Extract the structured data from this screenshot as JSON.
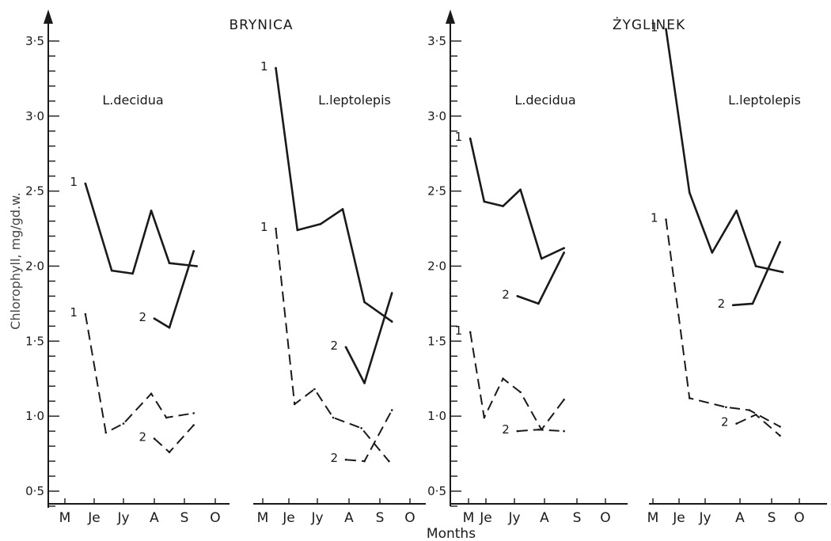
{
  "chart_data": {
    "type": "line",
    "ylabel": "Chlorophyll, mg/gd.w.",
    "xlabel": "Months",
    "ylim": [
      0.4,
      3.7
    ],
    "y_ticks": [
      "0·5",
      "1·0",
      "1·5",
      "2·0",
      "2·5",
      "3·0",
      "3·5"
    ],
    "grid": false,
    "sites": [
      {
        "title": "BRYNICA",
        "panels": [
          {
            "title": "L.decidua",
            "months": [
              "M",
              "Je",
              "Jy",
              "A",
              "S",
              "O"
            ],
            "series": [
              {
                "name": "1",
                "style": "solid",
                "x": [
                  1.7,
                  2.6,
                  3.3,
                  3.9,
                  4.5,
                  5.4
                ],
                "y": [
                  2.55,
                  1.97,
                  1.95,
                  2.37,
                  2.02,
                  2.0
                ]
              },
              {
                "name": "2",
                "style": "solid",
                "x": [
                  4.0,
                  4.5,
                  5.3
                ],
                "y": [
                  1.65,
                  1.59,
                  2.1
                ]
              },
              {
                "name": "1",
                "style": "dashed",
                "x": [
                  1.7,
                  2.4,
                  3.0,
                  3.9,
                  4.4,
                  5.3
                ],
                "y": [
                  1.68,
                  0.89,
                  0.95,
                  1.15,
                  0.99,
                  1.02
                ]
              },
              {
                "name": "2",
                "style": "dashed",
                "x": [
                  4.0,
                  4.5,
                  5.3
                ],
                "y": [
                  0.85,
                  0.76,
                  0.94
                ]
              }
            ]
          },
          {
            "title": "L.leptolepis",
            "months": [
              "M",
              "Je",
              "Jy",
              "A",
              "S",
              "O"
            ],
            "series": [
              {
                "name": "1",
                "style": "solid",
                "x": [
                  1.5,
                  2.3,
                  3.1,
                  3.8,
                  4.5,
                  5.4
                ],
                "y": [
                  3.32,
                  2.24,
                  2.28,
                  2.38,
                  1.76,
                  1.63
                ]
              },
              {
                "name": "2",
                "style": "solid",
                "x": [
                  3.9,
                  4.5,
                  5.4
                ],
                "y": [
                  1.46,
                  1.22,
                  1.82
                ]
              },
              {
                "name": "1",
                "style": "dashed",
                "x": [
                  1.5,
                  2.2,
                  2.9,
                  3.5,
                  4.4,
                  5.3
                ],
                "y": [
                  2.25,
                  1.08,
                  1.18,
                  0.99,
                  0.92,
                  0.7
                ]
              },
              {
                "name": "2",
                "style": "dashed",
                "x": [
                  3.9,
                  4.5,
                  5.4
                ],
                "y": [
                  0.71,
                  0.7,
                  1.04
                ]
              }
            ]
          }
        ]
      },
      {
        "title": "ŻYGLINEK",
        "panels": [
          {
            "title": "L.decidua",
            "months": [
              "M",
              "Je",
              "Jy",
              "A",
              "S",
              "O"
            ],
            "series": [
              {
                "name": "1",
                "style": "solid",
                "x": [
                  1.1,
                  1.9,
                  2.6,
                  3.2,
                  3.9,
                  4.6
                ],
                "y": [
                  2.85,
                  2.43,
                  2.4,
                  2.51,
                  2.05,
                  2.12
                ]
              },
              {
                "name": "2",
                "style": "solid",
                "x": [
                  3.1,
                  3.8,
                  4.6
                ],
                "y": [
                  1.8,
                  1.75,
                  2.09
                ]
              },
              {
                "name": "1",
                "style": "dashed",
                "x": [
                  1.1,
                  1.9,
                  2.6,
                  3.2,
                  3.9,
                  4.6
                ],
                "y": [
                  1.56,
                  0.99,
                  1.25,
                  1.16,
                  0.91,
                  1.11
                ]
              },
              {
                "name": "2",
                "style": "dashed",
                "x": [
                  3.1,
                  3.8,
                  4.6
                ],
                "y": [
                  0.9,
                  0.91,
                  0.9
                ]
              }
            ]
          },
          {
            "title": "L.leptolepis",
            "months": [
              "M",
              "Je",
              "Jy",
              "A",
              "S",
              "O"
            ],
            "series": [
              {
                "name": "1",
                "style": "solid",
                "x": [
                  1.5,
                  2.4,
                  3.2,
                  3.9,
                  4.5,
                  5.4
                ],
                "y": [
                  3.58,
                  2.49,
                  2.09,
                  2.37,
                  2.0,
                  1.96
                ]
              },
              {
                "name": "2",
                "style": "solid",
                "x": [
                  3.8,
                  4.4,
                  5.3
                ],
                "y": [
                  1.74,
                  1.75,
                  2.16
                ]
              },
              {
                "name": "1",
                "style": "dashed",
                "x": [
                  1.5,
                  2.4,
                  3.6,
                  4.3,
                  5.3
                ],
                "y": [
                  2.31,
                  1.12,
                  1.06,
                  1.04,
                  0.93
                ]
              },
              {
                "name": "2",
                "style": "dashed",
                "x": [
                  3.9,
                  4.5,
                  5.3
                ],
                "y": [
                  0.95,
                  1.01,
                  0.87
                ]
              }
            ]
          }
        ]
      }
    ]
  }
}
